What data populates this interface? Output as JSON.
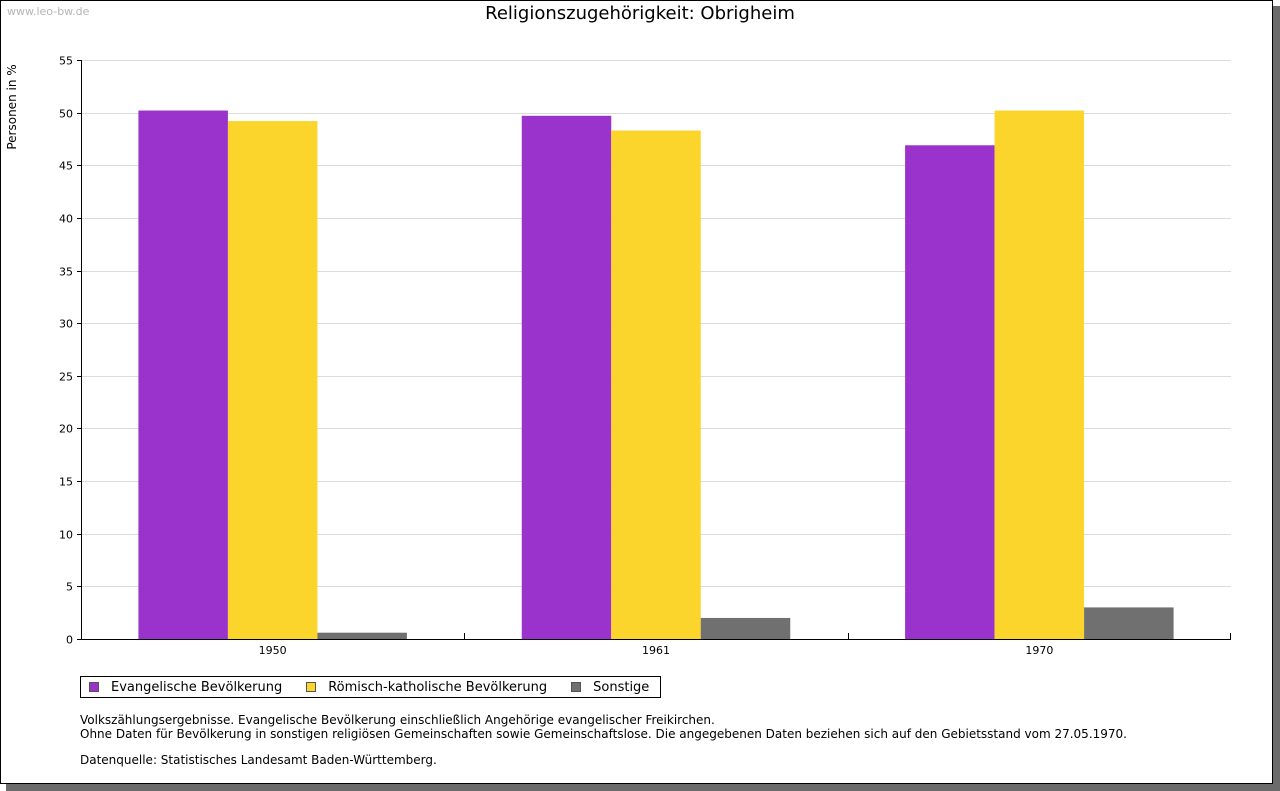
{
  "watermark": "www.leo-bw.de",
  "chart_data": {
    "type": "bar",
    "title": "Religionszugehörigkeit: Obrigheim",
    "xlabel": "",
    "ylabel": "Personen in %",
    "ylim": [
      0,
      55
    ],
    "yticks": [
      0,
      5,
      10,
      15,
      20,
      25,
      30,
      35,
      40,
      45,
      50,
      55
    ],
    "grid": true,
    "legend_position": "bottom-left",
    "categories": [
      "1950",
      "1961",
      "1970"
    ],
    "series": [
      {
        "name": "Evangelische Bevölkerung",
        "color": "#9933cc",
        "values": [
          50.2,
          49.7,
          46.9
        ]
      },
      {
        "name": "Römisch-katholische Bevölkerung",
        "color": "#fcd52c",
        "values": [
          49.2,
          48.3,
          50.2
        ]
      },
      {
        "name": "Sonstige",
        "color": "#707070",
        "values": [
          0.6,
          2.0,
          3.0
        ]
      }
    ]
  },
  "notes": {
    "line1": "Volkszählungsergebnisse. Evangelische Bevölkerung einschließlich Angehörige evangelischer Freikirchen.",
    "line2": "Ohne Daten für Bevölkerung in sonstigen religiösen Gemeinschaften sowie Gemeinschaftslose. Die angegebenen Daten beziehen sich auf den Gebietsstand vom 27.05.1970.",
    "source": "Datenquelle: Statistisches Landesamt Baden-Württemberg."
  }
}
